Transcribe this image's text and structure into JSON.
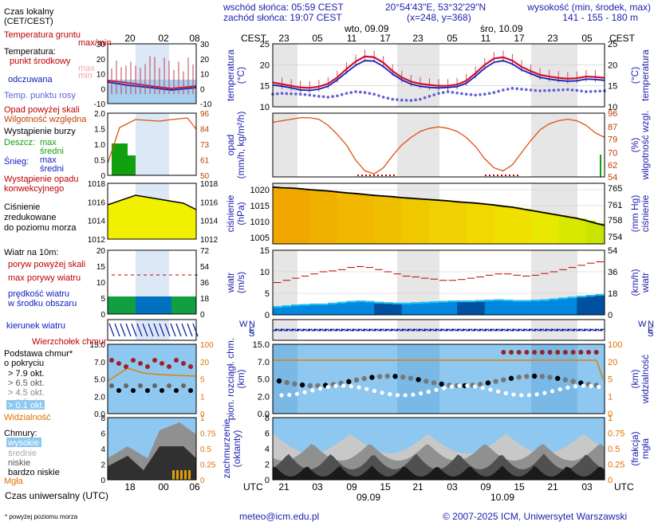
{
  "header": {
    "time_zone_label": "Czas lokalny\n(CET/CEST)",
    "sunrise": "wschód słońca: 05:59 CEST",
    "sunset": "zachód słońca: 19:07 CEST",
    "coords": "20°54'43\"E, 53°32'29\"N",
    "grid": "(x=248, y=368)",
    "elevation_title": "wysokość (min, środek, max)",
    "elevation_values": "141 - 155 - 180 m",
    "day1": "wto, 09.09",
    "day2": "śro, 10.09",
    "cest": "CEST",
    "utc": "UTC"
  },
  "footer": {
    "utc_label": "Czas uniwersalny (UTC)",
    "note": "* powyżej poziomu morza",
    "email": "meteo@icm.edu.pl",
    "copyright": "© 2007-2025 ICM, Uniwersytet Warszawski"
  },
  "time_axis": {
    "top_hours": [
      "23",
      "05",
      "11",
      "17",
      "23",
      "05",
      "11",
      "17",
      "23",
      "05"
    ],
    "bottom_hours": [
      "21",
      "03",
      "09",
      "15",
      "21",
      "03",
      "09",
      "15",
      "21",
      "03"
    ],
    "bottom_dates": [
      "09.09",
      "10.09"
    ],
    "mini_top": [
      "20",
      "02",
      "08"
    ],
    "mini_bottom": [
      "18",
      "00",
      "06"
    ]
  },
  "legend": {
    "soil_temp": "Temperatura gruntu",
    "maxmin": "max/min",
    "temperature": "Temperatura:",
    "midpoint": "punkt środkowy",
    "max": "max",
    "min": "min",
    "perceived": "odczuwana",
    "dew_point": "Temp. punktu rosy",
    "precip_above": "Opad powyżej skali",
    "humidity": "Wilgotność względna",
    "storm": "Wystąpienie burzy",
    "rain": "Deszcz:",
    "rain_max": "max",
    "rain_mean": "średni",
    "snow": "Śnieg:",
    "snow_max": "max",
    "snow_mean": "średni",
    "conv_precip": "Wystąpienie opadu\nkonwekcyjnego",
    "pressure": "Ciśnienie\nzredukowane\ndo poziomu morza",
    "wind_at": "Wiatr na 10m:",
    "gust_above": "poryw powyżej skali",
    "max_gust": "max porywy wiatru",
    "wind_speed": "prędkość wiatru\nw środku obszaru",
    "wind_dir": "kierunek wiatru",
    "cb_top": "Wierzchołek chmur",
    "cloud_base": "Podstawa chmur*\no pokryciu",
    "okt79": "> 7.9 okt.",
    "okt65": "> 6.5 okt.",
    "okt45": "> 4.5 okt.",
    "okt25": "> 2.5 okt.",
    "okt01": "> 0.1 okt.",
    "visibility": "Widzialność",
    "clouds": "Chmury:",
    "high": "wysokie",
    "middle": "średnie",
    "low": "niskie",
    "very_low": "bardzo niskie",
    "fog": "Mgła"
  },
  "panels": {
    "temp": {
      "left": "temperatura\n(°C)",
      "right": "(°C)\ntemperatura",
      "ticks": [
        "25",
        "20",
        "15",
        "10"
      ]
    },
    "precip": {
      "left": "opad\n(mm/h, kg/m²/h)",
      "right": "(%)\nwilgotność wzgl.",
      "ticks_right": [
        "96",
        "87",
        "79",
        "70",
        "62",
        "54"
      ]
    },
    "pressure": {
      "left": "ciśnienie\n(hPa)",
      "right": "(mm Hg)\nciśnienie",
      "ticks_left": [
        "1020",
        "1015",
        "1010",
        "1005"
      ],
      "ticks_right": [
        "765",
        "761",
        "758",
        "754"
      ]
    },
    "wind": {
      "left": "wiatr\n(m/s)",
      "right": "(km/h)\nwiatr",
      "ticks_left": [
        "15",
        "10",
        "5",
        "0"
      ],
      "ticks_right": [
        "54",
        "36",
        "18",
        "0"
      ]
    },
    "winddir": {
      "n": "N",
      "w": "W",
      "s": "S",
      "e": "E"
    },
    "cloudbase": {
      "left": "pion. rozciągł. chm.\n(km)",
      "right": "(km)\nwidzialność",
      "ticks_left": [
        "15.0",
        "7.0",
        "5.0",
        "2.0",
        "0.0"
      ],
      "ticks_right": [
        "100",
        "20",
        "5",
        "1",
        "0"
      ]
    },
    "clouds": {
      "left": "zachmurzenie\n(oktanty)",
      "right": "(frakcja)\nmgła",
      "ticks_left": [
        "8",
        "6",
        "4",
        "2",
        "0"
      ],
      "ticks_right": [
        "1",
        "0.75",
        "0.5",
        "0.25",
        "0"
      ]
    }
  },
  "mini": {
    "temp_left": [
      "30",
      "20",
      "10",
      "0",
      "-10"
    ],
    "temp_right": [
      "30",
      "20",
      "10",
      "0",
      "-10"
    ],
    "precip_left": [
      "2.0",
      "1.5",
      "1.0",
      "0.5",
      "0"
    ],
    "precip_right": [
      "96",
      "84",
      "73",
      "61",
      "50"
    ],
    "pres_left": [
      "1018",
      "1016",
      "1014",
      "1012"
    ],
    "pres_right": [
      "1018",
      "1016",
      "1014",
      "1012"
    ],
    "wind_left": [
      "20",
      "15",
      "10",
      "5",
      "0"
    ],
    "wind_right": [
      "72",
      "54",
      "36",
      "18",
      "0"
    ],
    "cb_left": [
      "15.0",
      "7.0",
      "5.0",
      "2.0",
      "0.0"
    ],
    "cb_right": [
      "100",
      "20",
      "5",
      "1",
      "0"
    ],
    "cl_left": [
      "8",
      "6",
      "4",
      "2",
      "0"
    ],
    "cl_right": [
      "1",
      "0.75",
      "0.5",
      "0.25",
      "0"
    ]
  },
  "colors": {
    "temp": "#d0102a",
    "perceived": "#1020c0",
    "dewpoint": "#6060d8",
    "humidity": "#e05010",
    "axis_orange": "#c04000",
    "label_blue": "#2020b0",
    "panel_bg": "#ffffff",
    "night": "#e8e8e8",
    "sky": "#8ec8f0"
  },
  "chart_data": [
    {
      "type": "line",
      "title": "temperatura",
      "ylabel": "temperatura (°C)",
      "ylim": [
        10,
        25
      ],
      "series": [
        {
          "name": "punkt środkowy",
          "values": [
            15.8,
            15.4,
            15.0,
            14.6,
            14.5,
            14.8,
            15.5,
            17.0,
            19.0,
            20.8,
            22.0,
            21.8,
            20.5,
            18.5,
            17.0,
            16.0,
            15.5,
            15.2,
            15.0,
            15.0,
            15.3,
            16.2,
            18.0,
            20.0,
            21.5,
            21.8,
            21.0,
            19.5,
            18.5,
            17.6,
            17.2,
            16.9,
            16.7,
            16.8,
            17.2,
            17.1,
            16.9
          ]
        },
        {
          "name": "odczuwana",
          "values": [
            15.2,
            14.9,
            14.5,
            14.0,
            13.9,
            14.2,
            14.9,
            16.4,
            18.2,
            19.9,
            21.0,
            20.9,
            19.6,
            17.8,
            16.4,
            15.4,
            14.9,
            14.6,
            14.5,
            14.6,
            14.8,
            15.6,
            17.3,
            19.2,
            20.6,
            21.0,
            20.2,
            18.8,
            17.9,
            17.0,
            16.6,
            16.3,
            16.1,
            16.2,
            16.6,
            16.5,
            16.3
          ]
        },
        {
          "name": "Temp. punktu rosy",
          "values": [
            13.0,
            13.2,
            13.1,
            13.0,
            12.8,
            12.5,
            12.3,
            12.6,
            13.2,
            13.6,
            13.4,
            13.0,
            12.3,
            11.8,
            11.6,
            11.5,
            11.8,
            12.5,
            13.2,
            13.6,
            13.3,
            13.0,
            12.8,
            13.0,
            13.4,
            14.0,
            14.4,
            14.2,
            14.0,
            13.8,
            13.9,
            14.0,
            14.1,
            13.9,
            13.6,
            13.7,
            13.8
          ]
        }
      ]
    },
    {
      "type": "line",
      "title": "opad / wilgotność",
      "ylabel": "wilgotność wzgl. (%)",
      "ylim": [
        54,
        96
      ],
      "series": [
        {
          "name": "Wilgotność względna",
          "values": [
            90,
            91,
            92,
            93,
            93,
            92,
            88,
            82,
            75,
            65,
            58,
            56,
            60,
            68,
            75,
            80,
            84,
            86,
            87,
            86,
            84,
            80,
            74,
            66,
            60,
            58,
            62,
            70,
            78,
            85,
            89,
            91,
            92,
            91,
            88,
            83,
            80
          ]
        }
      ]
    },
    {
      "type": "line",
      "title": "ciśnienie",
      "ylabel": "ciśnienie (hPa)",
      "ylim": [
        1003,
        1022
      ],
      "series": [
        {
          "name": "ciśnienie",
          "values": [
            1020.8,
            1020.6,
            1020.5,
            1020.3,
            1020.0,
            1019.8,
            1019.6,
            1019.3,
            1019.0,
            1018.8,
            1018.5,
            1018.2,
            1018.0,
            1017.8,
            1017.5,
            1017.3,
            1017.1,
            1016.9,
            1016.7,
            1016.5,
            1016.2,
            1016.0,
            1015.8,
            1015.5,
            1015.2,
            1014.8,
            1014.5,
            1014.0,
            1013.5,
            1013.0,
            1012.5,
            1012.0,
            1011.5,
            1011.0,
            1010.3,
            1009.5,
            1008.8
          ]
        }
      ]
    },
    {
      "type": "area",
      "title": "wiatr",
      "ylabel": "wiatr (m/s)",
      "ylim": [
        0,
        15
      ],
      "series": [
        {
          "name": "prędkość wiatru",
          "values": [
            2.0,
            2.2,
            2.4,
            2.5,
            2.6,
            2.6,
            2.8,
            3.0,
            3.2,
            3.3,
            3.2,
            3.0,
            2.9,
            2.8,
            2.8,
            2.9,
            3.0,
            3.1,
            3.2,
            3.3,
            3.3,
            3.3,
            3.4,
            3.5,
            3.6,
            3.5,
            3.4,
            3.4,
            3.5,
            3.6,
            3.8,
            4.0,
            4.2,
            4.4,
            4.6,
            4.8,
            5.0
          ]
        },
        {
          "name": "max porywy wiatru",
          "values": [
            7.5,
            8.0,
            8.5,
            9.0,
            9.5,
            10.0,
            10.2,
            10.5,
            11.0,
            11.2,
            11.0,
            10.5,
            10.0,
            9.5,
            9.0,
            8.8,
            8.5,
            8.3,
            8.0,
            8.0,
            8.2,
            8.5,
            8.8,
            9.2,
            9.5,
            9.5,
            9.2,
            9.0,
            9.2,
            9.6,
            10.0,
            10.5,
            11.0,
            11.5,
            12.0,
            12.3,
            12.5
          ]
        }
      ]
    }
  ]
}
